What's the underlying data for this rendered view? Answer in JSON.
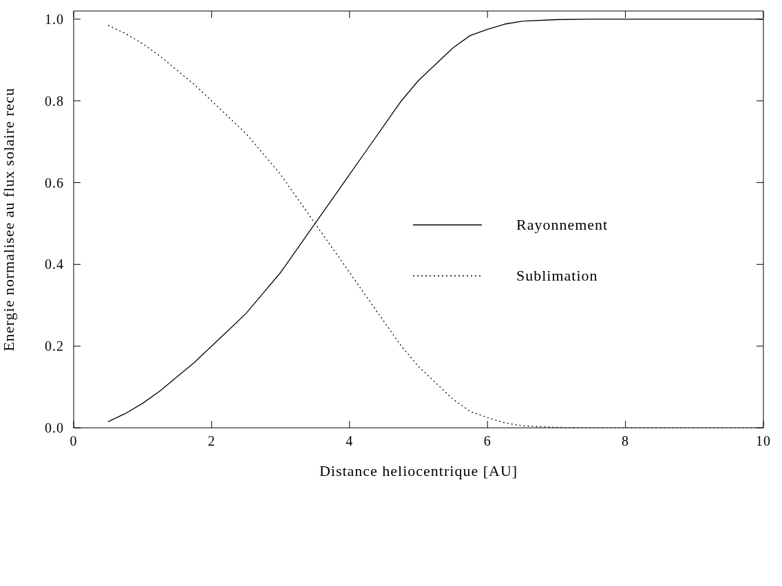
{
  "chart_data": {
    "type": "line",
    "xlabel": "Distance heliocentrique [AU]",
    "ylabel": "Energie normalisee au flux solaire recu",
    "x": [
      0.5,
      0.75,
      1,
      1.25,
      1.5,
      1.75,
      2,
      2.25,
      2.5,
      2.75,
      3,
      3.25,
      3.5,
      3.75,
      4,
      4.25,
      4.5,
      4.75,
      5,
      5.25,
      5.5,
      5.75,
      6,
      6.25,
      6.5,
      7,
      7.5,
      8,
      8.5,
      9,
      9.5,
      10
    ],
    "series": [
      {
        "name": "Rayonnement",
        "color": "#000000",
        "line_style": "solid",
        "values": [
          0.015,
          0.035,
          0.06,
          0.09,
          0.125,
          0.16,
          0.2,
          0.24,
          0.28,
          0.33,
          0.38,
          0.44,
          0.5,
          0.56,
          0.62,
          0.68,
          0.74,
          0.8,
          0.85,
          0.89,
          0.93,
          0.96,
          0.975,
          0.988,
          0.995,
          0.999,
          1,
          1,
          1,
          1,
          1,
          1
        ]
      },
      {
        "name": "Sublimation",
        "color": "#000000",
        "line_style": "dotted",
        "values": [
          0.985,
          0.965,
          0.94,
          0.91,
          0.875,
          0.84,
          0.8,
          0.76,
          0.72,
          0.67,
          0.62,
          0.56,
          0.5,
          0.44,
          0.38,
          0.32,
          0.26,
          0.2,
          0.15,
          0.11,
          0.07,
          0.04,
          0.025,
          0.012,
          0.005,
          0.001,
          0,
          0,
          0,
          0,
          0,
          0
        ]
      }
    ],
    "xlim": [
      0,
      10
    ],
    "xticks": [
      0,
      2,
      4,
      6,
      8,
      10
    ],
    "ylim": [
      0,
      1.02
    ],
    "yticks": [
      {
        "value": 0,
        "label": "0.0"
      },
      0.2,
      0.4,
      0.6,
      0.8,
      {
        "value": 1,
        "label": "1.0"
      }
    ],
    "grid": false,
    "legend": "center right",
    "marker": "none"
  }
}
